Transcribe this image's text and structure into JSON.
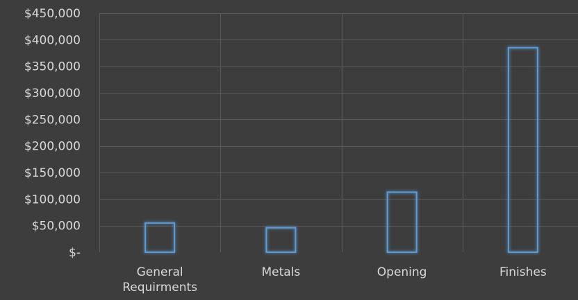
{
  "chart_data": {
    "type": "bar",
    "categories": [
      [
        "General",
        "Requirments"
      ],
      [
        "Metals"
      ],
      [
        "Opening"
      ],
      [
        "Finishes"
      ]
    ],
    "values": [
      55000,
      46000,
      113000,
      385000
    ],
    "ylim": [
      0,
      450000
    ],
    "y_ticks": [
      {
        "value": 0,
        "label": "$-"
      },
      {
        "value": 50000,
        "label": "$50,000"
      },
      {
        "value": 100000,
        "label": "$100,000"
      },
      {
        "value": 150000,
        "label": "$150,000"
      },
      {
        "value": 200000,
        "label": "$200,000"
      },
      {
        "value": 250000,
        "label": "$250,000"
      },
      {
        "value": 300000,
        "label": "$300,000"
      },
      {
        "value": 350000,
        "label": "$350,000"
      },
      {
        "value": 400000,
        "label": "$400,000"
      },
      {
        "value": 450000,
        "label": "$450,000"
      }
    ],
    "grid": true,
    "legend": "none",
    "colors": {
      "background": "#3d3d3d",
      "bar_stroke": "#5b9bd5",
      "bar_glow": "#4a90d9",
      "grid": "#5a5a5a",
      "text": "#d9d9d9"
    }
  }
}
